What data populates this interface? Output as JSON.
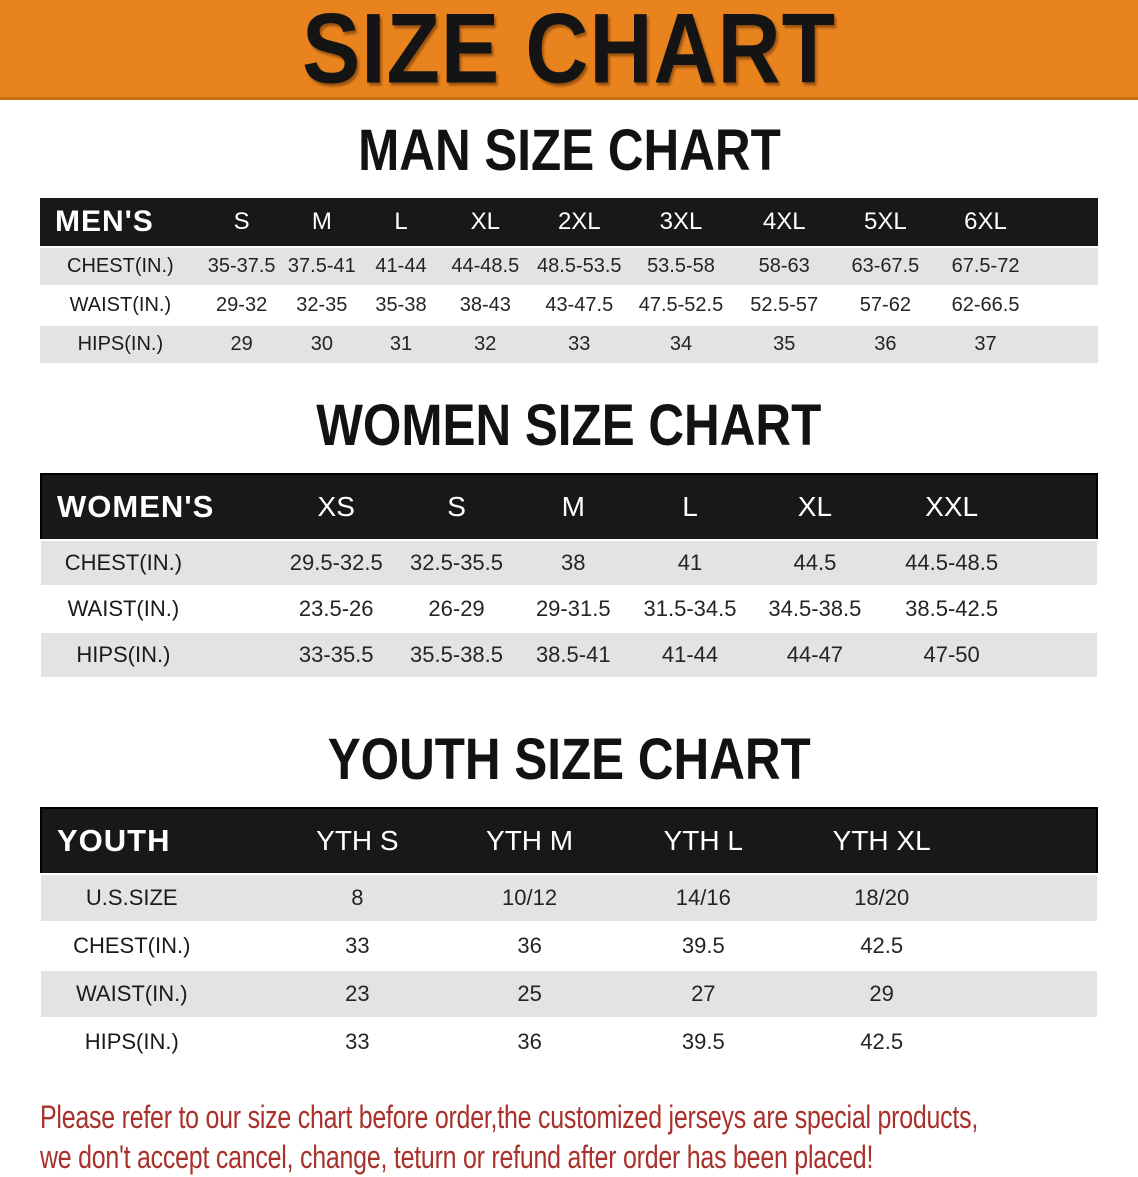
{
  "banner": {
    "title": "SIZE CHART"
  },
  "colors": {
    "banner_bg": "#e8831e",
    "banner_border": "#c9700f",
    "header_bar": "#181818",
    "stripe_gray": "#e3e3e3",
    "disclaimer_red": "#a8322b"
  },
  "sections": [
    {
      "heading": "MAN SIZE CHART",
      "group_label": "MEN'S",
      "columns": [
        "S",
        "M",
        "L",
        "XL",
        "2XL",
        "3XL",
        "4XL",
        "5XL",
        "6XL"
      ],
      "rows": [
        {
          "label": "CHEST(IN.)",
          "values": [
            "35-37.5",
            "37.5-41",
            "41-44",
            "44-48.5",
            "48.5-53.5",
            "53.5-58",
            "58-63",
            "63-67.5",
            "67.5-72"
          ]
        },
        {
          "label": "WAIST(IN.)",
          "values": [
            "29-32",
            "32-35",
            "35-38",
            "38-43",
            "43-47.5",
            "47.5-52.5",
            "52.5-57",
            "57-62",
            "62-66.5"
          ]
        },
        {
          "label": "HIPS(IN.)",
          "values": [
            "29",
            "30",
            "31",
            "32",
            "33",
            "34",
            "35",
            "36",
            "37"
          ]
        }
      ]
    },
    {
      "heading": "WOMEN SIZE CHART",
      "group_label": "WOMEN'S",
      "columns": [
        "XS",
        "S",
        "M",
        "L",
        "XL",
        "XXL"
      ],
      "rows": [
        {
          "label": "CHEST(IN.)",
          "values": [
            "29.5-32.5",
            "32.5-35.5",
            "38",
            "41",
            "44.5",
            "44.5-48.5"
          ]
        },
        {
          "label": "WAIST(IN.)",
          "values": [
            "23.5-26",
            "26-29",
            "29-31.5",
            "31.5-34.5",
            "34.5-38.5",
            "38.5-42.5"
          ]
        },
        {
          "label": "HIPS(IN.)",
          "values": [
            "33-35.5",
            "35.5-38.5",
            "38.5-41",
            "41-44",
            "44-47",
            "47-50"
          ]
        }
      ]
    },
    {
      "heading": "YOUTH SIZE CHART",
      "group_label": "YOUTH",
      "columns": [
        "YTH S",
        "YTH M",
        "YTH L",
        "YTH XL"
      ],
      "rows": [
        {
          "label": "U.S.SIZE",
          "values": [
            "8",
            "10/12",
            "14/16",
            "18/20"
          ]
        },
        {
          "label": "CHEST(IN.)",
          "values": [
            "33",
            "36",
            "39.5",
            "42.5"
          ]
        },
        {
          "label": "WAIST(IN.)",
          "values": [
            "23",
            "25",
            "27",
            "29"
          ]
        },
        {
          "label": "HIPS(IN.)",
          "values": [
            "33",
            "36",
            "39.5",
            "42.5"
          ]
        }
      ]
    }
  ],
  "disclaimer": {
    "line1": "Please refer to our size chart before order,the customized jerseys are special products,",
    "line2": "we don't accept cancel, change, teturn or refund after order has been placed!"
  }
}
